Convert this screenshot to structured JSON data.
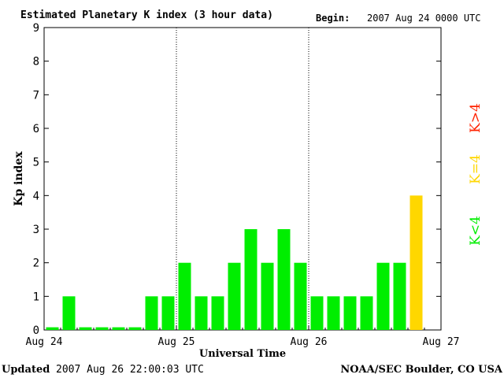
{
  "header": {
    "title": "Estimated Planetary K index (3 hour data)",
    "begin_label": "Begin:",
    "begin_value": "2007 Aug 24 0000 UTC"
  },
  "footer": {
    "updated_label": "Updated",
    "updated_value": "2007 Aug 26 22:00:03 UTC",
    "source": "NOAA/SEC Boulder, CO USA"
  },
  "legend": {
    "low": "K<4",
    "equal": "K=4",
    "high": "K>4"
  },
  "colors": {
    "low": "#00ee00",
    "equal": "#ffd700",
    "high": "#ff2200",
    "axis": "#000000"
  },
  "chart_data": {
    "type": "bar",
    "title": "Estimated Planetary K index (3 hour data)",
    "xlabel": "Universal Time",
    "ylabel": "Kp index",
    "ylim": [
      0,
      9
    ],
    "yticks": [
      "0",
      "1",
      "2",
      "3",
      "4",
      "5",
      "6",
      "7",
      "8",
      "9"
    ],
    "xticks": [
      "Aug 24",
      "Aug 25",
      "Aug 26",
      "Aug 27"
    ],
    "bar_interval_hours": 3,
    "values": [
      0,
      1,
      0,
      0,
      0,
      0,
      1,
      1,
      2,
      1,
      1,
      2,
      3,
      2,
      3,
      2,
      1,
      1,
      1,
      1,
      2,
      2,
      4
    ],
    "day_separators": [
      "Aug 25",
      "Aug 26"
    ],
    "grid": false
  }
}
